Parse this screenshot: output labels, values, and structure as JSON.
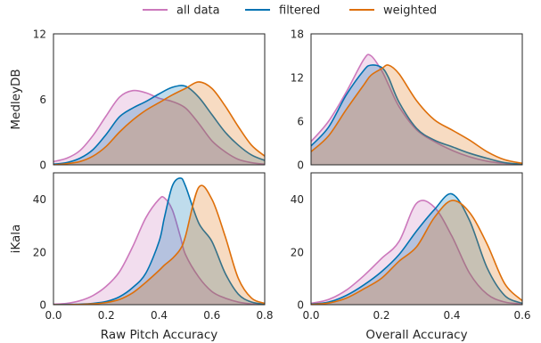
{
  "legend": {
    "placement": "top-center",
    "entries": [
      {
        "label": "all data",
        "color": "#cc78bc"
      },
      {
        "label": "filtered",
        "color": "#0173b2"
      },
      {
        "label": "weighted",
        "color": "#de6f0a"
      }
    ]
  },
  "chart_data": [
    {
      "type": "area",
      "row_label": "MedleyDB",
      "xlabel": "",
      "xlim": [
        0,
        0.8
      ],
      "ylim": [
        0,
        12
      ],
      "yticks": [
        0,
        6,
        12
      ],
      "xticks": [],
      "grid": false,
      "x": [
        0.0,
        0.05,
        0.1,
        0.15,
        0.2,
        0.25,
        0.3,
        0.35,
        0.4,
        0.45,
        0.5,
        0.55,
        0.6,
        0.65,
        0.7,
        0.75,
        0.8
      ],
      "series": [
        {
          "name": "all data",
          "values": [
            0.3,
            0.6,
            1.3,
            2.7,
            4.5,
            6.2,
            6.8,
            6.6,
            6.1,
            5.8,
            5.2,
            3.8,
            2.2,
            1.2,
            0.5,
            0.2,
            0.05
          ]
        },
        {
          "name": "filtered",
          "values": [
            0.05,
            0.2,
            0.6,
            1.4,
            2.8,
            4.4,
            5.2,
            5.8,
            6.5,
            7.1,
            7.2,
            6.2,
            4.6,
            3.0,
            1.8,
            0.9,
            0.4
          ]
        },
        {
          "name": "weighted",
          "values": [
            0.0,
            0.1,
            0.3,
            0.8,
            1.7,
            3.0,
            4.1,
            5.0,
            5.7,
            6.4,
            7.0,
            7.6,
            7.0,
            5.4,
            3.5,
            1.8,
            0.8
          ]
        }
      ]
    },
    {
      "type": "area",
      "row_label": "",
      "xlabel": "",
      "xlim": [
        0,
        0.6
      ],
      "ylim": [
        0,
        18
      ],
      "yticks": [
        0,
        6,
        12,
        18
      ],
      "xticks": [],
      "grid": false,
      "x": [
        0.0,
        0.05,
        0.1,
        0.15,
        0.17,
        0.2,
        0.22,
        0.25,
        0.3,
        0.35,
        0.4,
        0.45,
        0.5,
        0.55,
        0.6
      ],
      "series": [
        {
          "name": "all data",
          "values": [
            3.2,
            6.0,
            10.0,
            14.5,
            15.0,
            13.0,
            11.0,
            8.0,
            4.8,
            3.2,
            2.0,
            1.1,
            0.5,
            0.2,
            0.05
          ]
        },
        {
          "name": "filtered",
          "values": [
            2.6,
            5.2,
            9.6,
            13.0,
            13.7,
            13.4,
            12.0,
            8.6,
            5.0,
            3.4,
            2.5,
            1.6,
            0.9,
            0.3,
            0.1
          ]
        },
        {
          "name": "weighted",
          "values": [
            1.8,
            4.0,
            7.6,
            11.0,
            12.3,
            13.2,
            13.7,
            12.5,
            8.8,
            6.2,
            4.8,
            3.4,
            1.8,
            0.7,
            0.2
          ]
        }
      ]
    },
    {
      "type": "area",
      "row_label": "iKala",
      "xlabel": "Raw Pitch Accuracy",
      "xlim": [
        0,
        0.8
      ],
      "ylim": [
        0,
        50
      ],
      "yticks": [
        0,
        20,
        40
      ],
      "xticks": [
        0.0,
        0.2,
        0.4,
        0.6,
        0.8
      ],
      "grid": false,
      "x": [
        0.0,
        0.05,
        0.1,
        0.15,
        0.2,
        0.25,
        0.3,
        0.35,
        0.4,
        0.42,
        0.45,
        0.48,
        0.5,
        0.55,
        0.6,
        0.65,
        0.7,
        0.75,
        0.8
      ],
      "series": [
        {
          "name": "all data",
          "values": [
            0.2,
            0.5,
            1.5,
            3.5,
            7.0,
            12.5,
            22.0,
            33.0,
            40.0,
            40.5,
            36.0,
            26.0,
            19.0,
            10.5,
            5.0,
            2.5,
            1.0,
            0.3,
            0.1
          ]
        },
        {
          "name": "filtered",
          "values": [
            0.0,
            0.1,
            0.2,
            0.5,
            1.2,
            3.0,
            6.5,
            12.0,
            24.0,
            33.0,
            45.0,
            48.0,
            45.0,
            31.0,
            24.0,
            12.0,
            4.0,
            1.0,
            0.2
          ]
        },
        {
          "name": "weighted",
          "values": [
            0.0,
            0.0,
            0.1,
            0.3,
            0.8,
            2.0,
            4.5,
            8.5,
            13.0,
            15.0,
            17.5,
            21.0,
            26.0,
            44.5,
            40.0,
            26.0,
            10.0,
            2.5,
            0.5
          ]
        }
      ]
    },
    {
      "type": "area",
      "row_label": "",
      "xlabel": "Overall Accuracy",
      "xlim": [
        0,
        0.6
      ],
      "ylim": [
        0,
        50
      ],
      "yticks": [
        0,
        20,
        40
      ],
      "xticks": [
        0.0,
        0.2,
        0.4,
        0.6
      ],
      "grid": false,
      "x": [
        0.0,
        0.05,
        0.1,
        0.15,
        0.2,
        0.25,
        0.3,
        0.35,
        0.4,
        0.45,
        0.5,
        0.55,
        0.6
      ],
      "series": [
        {
          "name": "all data",
          "values": [
            0.5,
            2.0,
            5.5,
            11.0,
            17.5,
            24.0,
            38.5,
            37.0,
            26.0,
            12.0,
            4.0,
            1.0,
            0.3
          ]
        },
        {
          "name": "filtered",
          "values": [
            0.2,
            1.0,
            3.5,
            7.5,
            12.5,
            19.0,
            28.0,
            36.0,
            42.0,
            32.0,
            14.0,
            3.5,
            0.5
          ]
        },
        {
          "name": "weighted",
          "values": [
            0.1,
            0.6,
            2.5,
            6.0,
            10.0,
            16.5,
            22.0,
            33.0,
            39.5,
            35.0,
            23.0,
            8.0,
            1.5
          ]
        }
      ]
    }
  ]
}
